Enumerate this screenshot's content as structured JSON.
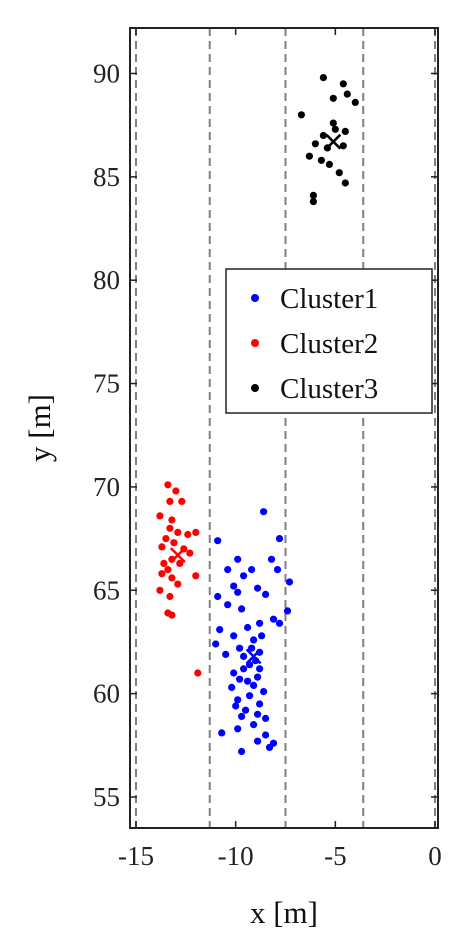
{
  "chart_data": {
    "type": "scatter",
    "title": "",
    "xlabel": "x [m]",
    "ylabel": "y [m]",
    "xlim": [
      -15.3,
      0.15
    ],
    "ylim": [
      53.5,
      92.2
    ],
    "x_ticks": [
      -15,
      -10,
      -5,
      0
    ],
    "x_tick_labels": [
      "-15",
      "-10",
      "-5",
      "0"
    ],
    "y_ticks": [
      55,
      60,
      65,
      70,
      75,
      80,
      85,
      90
    ],
    "y_tick_labels": [
      "55",
      "60",
      "65",
      "70",
      "75",
      "80",
      "85",
      "90"
    ],
    "grid": false,
    "lane_lines_x": [
      -15,
      -11.3,
      -7.5,
      -3.6,
      0
    ],
    "legend_position": "right, middle",
    "series": [
      {
        "name": "Cluster1",
        "color": "#0000ff",
        "centroid": [
          -9.1,
          61.8
        ],
        "points": [
          [
            -8.6,
            68.8
          ],
          [
            -7.8,
            67.5
          ],
          [
            -10.9,
            67.4
          ],
          [
            -8.2,
            66.5
          ],
          [
            -9.9,
            66.5
          ],
          [
            -10.4,
            66.0
          ],
          [
            -9.2,
            66.0
          ],
          [
            -7.9,
            66.0
          ],
          [
            -9.6,
            65.7
          ],
          [
            -7.3,
            65.4
          ],
          [
            -10.1,
            65.2
          ],
          [
            -8.9,
            65.1
          ],
          [
            -7.4,
            64.0
          ],
          [
            -10.9,
            64.7
          ],
          [
            -9.9,
            64.9
          ],
          [
            -8.5,
            64.8
          ],
          [
            -10.4,
            64.3
          ],
          [
            -9.7,
            64.1
          ],
          [
            -8.1,
            63.6
          ],
          [
            -7.8,
            63.4
          ],
          [
            -10.8,
            63.1
          ],
          [
            -9.4,
            63.2
          ],
          [
            -8.8,
            63.4
          ],
          [
            -10.1,
            62.8
          ],
          [
            -9.1,
            62.6
          ],
          [
            -8.7,
            62.8
          ],
          [
            -11.0,
            62.4
          ],
          [
            -9.8,
            62.2
          ],
          [
            -9.2,
            62.2
          ],
          [
            -8.8,
            62.0
          ],
          [
            -10.5,
            61.9
          ],
          [
            -9.6,
            61.8
          ],
          [
            -9.0,
            61.6
          ],
          [
            -8.8,
            61.2
          ],
          [
            -9.6,
            61.2
          ],
          [
            -9.3,
            61.4
          ],
          [
            -10.1,
            61.0
          ],
          [
            -8.9,
            60.8
          ],
          [
            -9.4,
            60.6
          ],
          [
            -9.8,
            60.7
          ],
          [
            -9.1,
            60.4
          ],
          [
            -10.2,
            60.3
          ],
          [
            -8.6,
            60.1
          ],
          [
            -9.3,
            59.9
          ],
          [
            -9.9,
            59.7
          ],
          [
            -8.8,
            59.5
          ],
          [
            -10.0,
            59.4
          ],
          [
            -9.5,
            59.2
          ],
          [
            -8.9,
            59.0
          ],
          [
            -8.5,
            58.8
          ],
          [
            -9.7,
            58.9
          ],
          [
            -9.1,
            58.5
          ],
          [
            -9.9,
            58.3
          ],
          [
            -10.7,
            58.1
          ],
          [
            -8.5,
            58.0
          ],
          [
            -8.9,
            57.7
          ],
          [
            -8.1,
            57.6
          ],
          [
            -8.3,
            57.4
          ],
          [
            -9.7,
            57.2
          ]
        ]
      },
      {
        "name": "Cluster2",
        "color": "#ff0000",
        "centroid": [
          -12.9,
          66.7
        ],
        "points": [
          [
            -13.4,
            70.1
          ],
          [
            -13.0,
            69.8
          ],
          [
            -13.3,
            69.3
          ],
          [
            -12.7,
            69.3
          ],
          [
            -13.8,
            68.6
          ],
          [
            -13.2,
            68.4
          ],
          [
            -13.3,
            68.0
          ],
          [
            -12.9,
            67.8
          ],
          [
            -12.4,
            67.7
          ],
          [
            -12.0,
            67.8
          ],
          [
            -13.5,
            67.5
          ],
          [
            -13.1,
            67.3
          ],
          [
            -12.6,
            67.0
          ],
          [
            -13.7,
            67.1
          ],
          [
            -12.3,
            66.8
          ],
          [
            -13.2,
            66.5
          ],
          [
            -13.6,
            66.3
          ],
          [
            -12.8,
            66.3
          ],
          [
            -13.4,
            66.0
          ],
          [
            -12.0,
            65.7
          ],
          [
            -13.7,
            65.8
          ],
          [
            -13.2,
            65.6
          ],
          [
            -12.9,
            65.3
          ],
          [
            -13.8,
            65.0
          ],
          [
            -13.3,
            64.7
          ],
          [
            -13.4,
            63.9
          ],
          [
            -13.2,
            63.8
          ],
          [
            -11.9,
            61.0
          ]
        ]
      },
      {
        "name": "Cluster3",
        "color": "#000000",
        "centroid": [
          -5.1,
          86.7
        ],
        "points": [
          [
            -5.6,
            89.8
          ],
          [
            -4.6,
            89.5
          ],
          [
            -4.4,
            89.0
          ],
          [
            -5.1,
            88.8
          ],
          [
            -4.0,
            88.6
          ],
          [
            -6.7,
            88.0
          ],
          [
            -5.1,
            87.6
          ],
          [
            -5.0,
            87.3
          ],
          [
            -5.6,
            87.0
          ],
          [
            -4.5,
            87.2
          ],
          [
            -6.0,
            86.6
          ],
          [
            -5.4,
            86.4
          ],
          [
            -4.6,
            86.5
          ],
          [
            -6.3,
            86.0
          ],
          [
            -5.7,
            85.8
          ],
          [
            -5.3,
            85.6
          ],
          [
            -4.8,
            85.2
          ],
          [
            -4.5,
            84.7
          ],
          [
            -6.1,
            84.1
          ],
          [
            -6.1,
            83.8
          ]
        ]
      }
    ]
  }
}
